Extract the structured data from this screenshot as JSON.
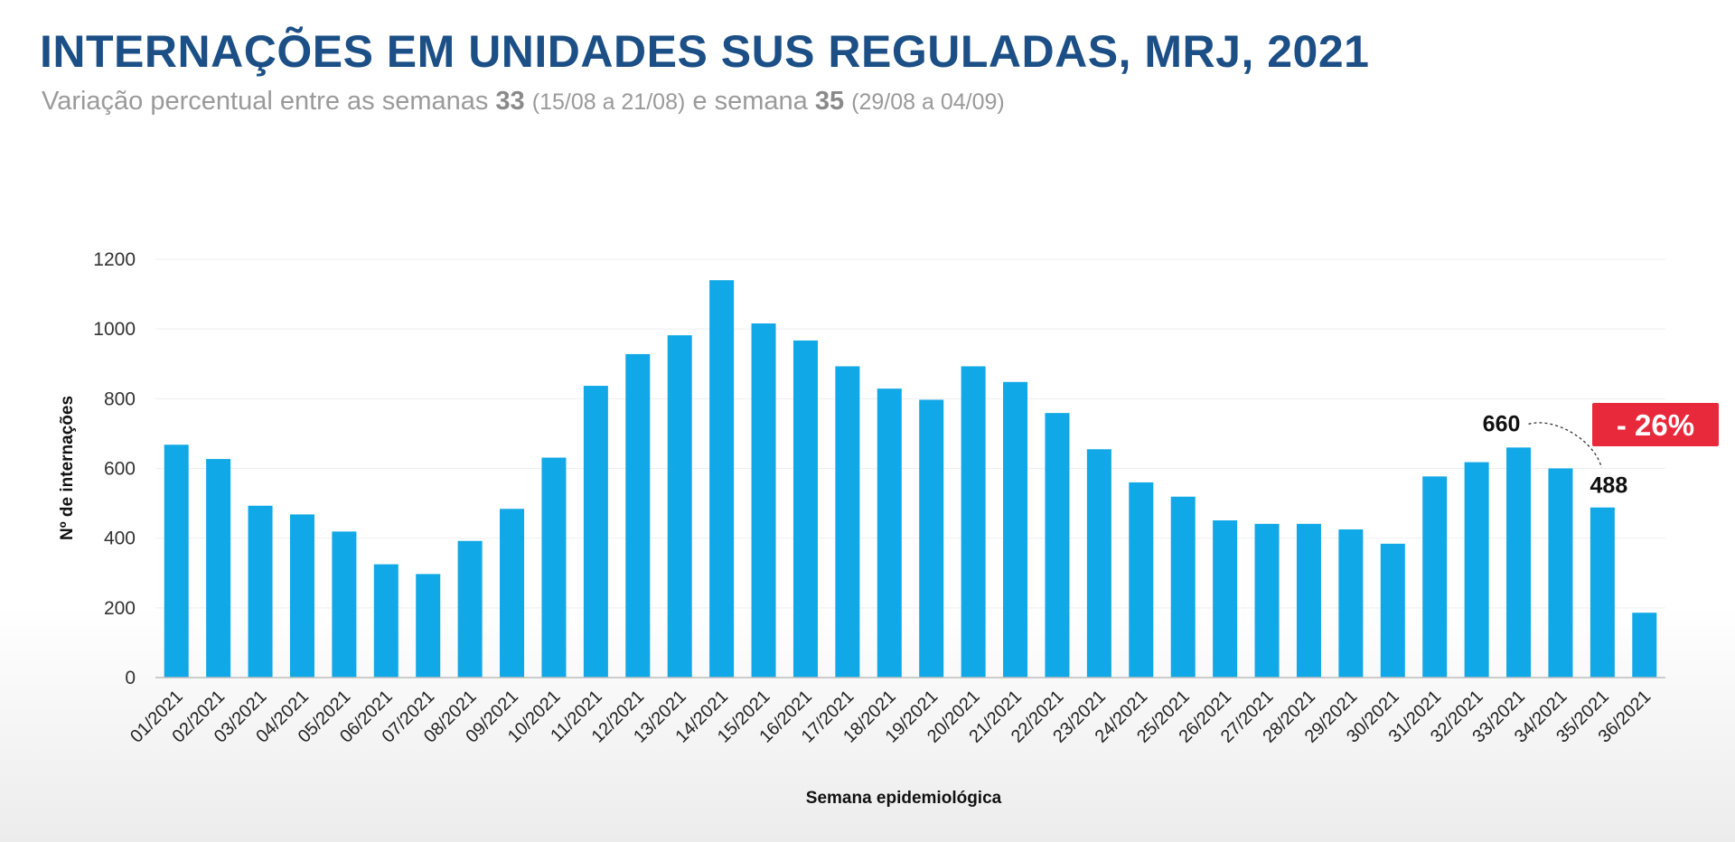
{
  "header": {
    "title": "INTERNAÇÕES EM UNIDADES SUS REGULADAS, MRJ, 2021",
    "subtitle_prefix": "Variação percentual entre as semanas ",
    "week_a": "33",
    "week_a_range": "(15/08 a 21/08)",
    "subtitle_mid": " e semana ",
    "week_b": "35",
    "week_b_range": "(29/08 a 04/09)"
  },
  "chart_data": {
    "type": "bar",
    "xlabel": "Semana epidemiológica",
    "ylabel": "Nº de internações",
    "ylim": [
      0,
      1200
    ],
    "yticks": [
      0,
      200,
      400,
      600,
      800,
      1000,
      1200
    ],
    "categories": [
      "01/2021",
      "02/2021",
      "03/2021",
      "04/2021",
      "05/2021",
      "06/2021",
      "07/2021",
      "08/2021",
      "09/2021",
      "10/2021",
      "11/2021",
      "12/2021",
      "13/2021",
      "14/2021",
      "15/2021",
      "16/2021",
      "17/2021",
      "18/2021",
      "19/2021",
      "20/2021",
      "21/2021",
      "22/2021",
      "23/2021",
      "24/2021",
      "25/2021",
      "26/2021",
      "27/2021",
      "28/2021",
      "29/2021",
      "30/2021",
      "31/2021",
      "32/2021",
      "33/2021",
      "34/2021",
      "35/2021",
      "36/2021"
    ],
    "values": [
      668,
      627,
      493,
      468,
      419,
      325,
      297,
      392,
      484,
      631,
      837,
      928,
      982,
      1140,
      1016,
      967,
      893,
      829,
      797,
      893,
      848,
      759,
      655,
      560,
      519,
      451,
      441,
      441,
      425,
      384,
      577,
      618,
      660,
      600,
      488,
      186
    ],
    "bar_color": "#10a8e6",
    "annotations": [
      {
        "label": "660",
        "category": "33/2021"
      },
      {
        "label": "488",
        "category": "35/2021"
      }
    ],
    "badge": {
      "text": "- 26%",
      "color": "#e8293b"
    }
  }
}
